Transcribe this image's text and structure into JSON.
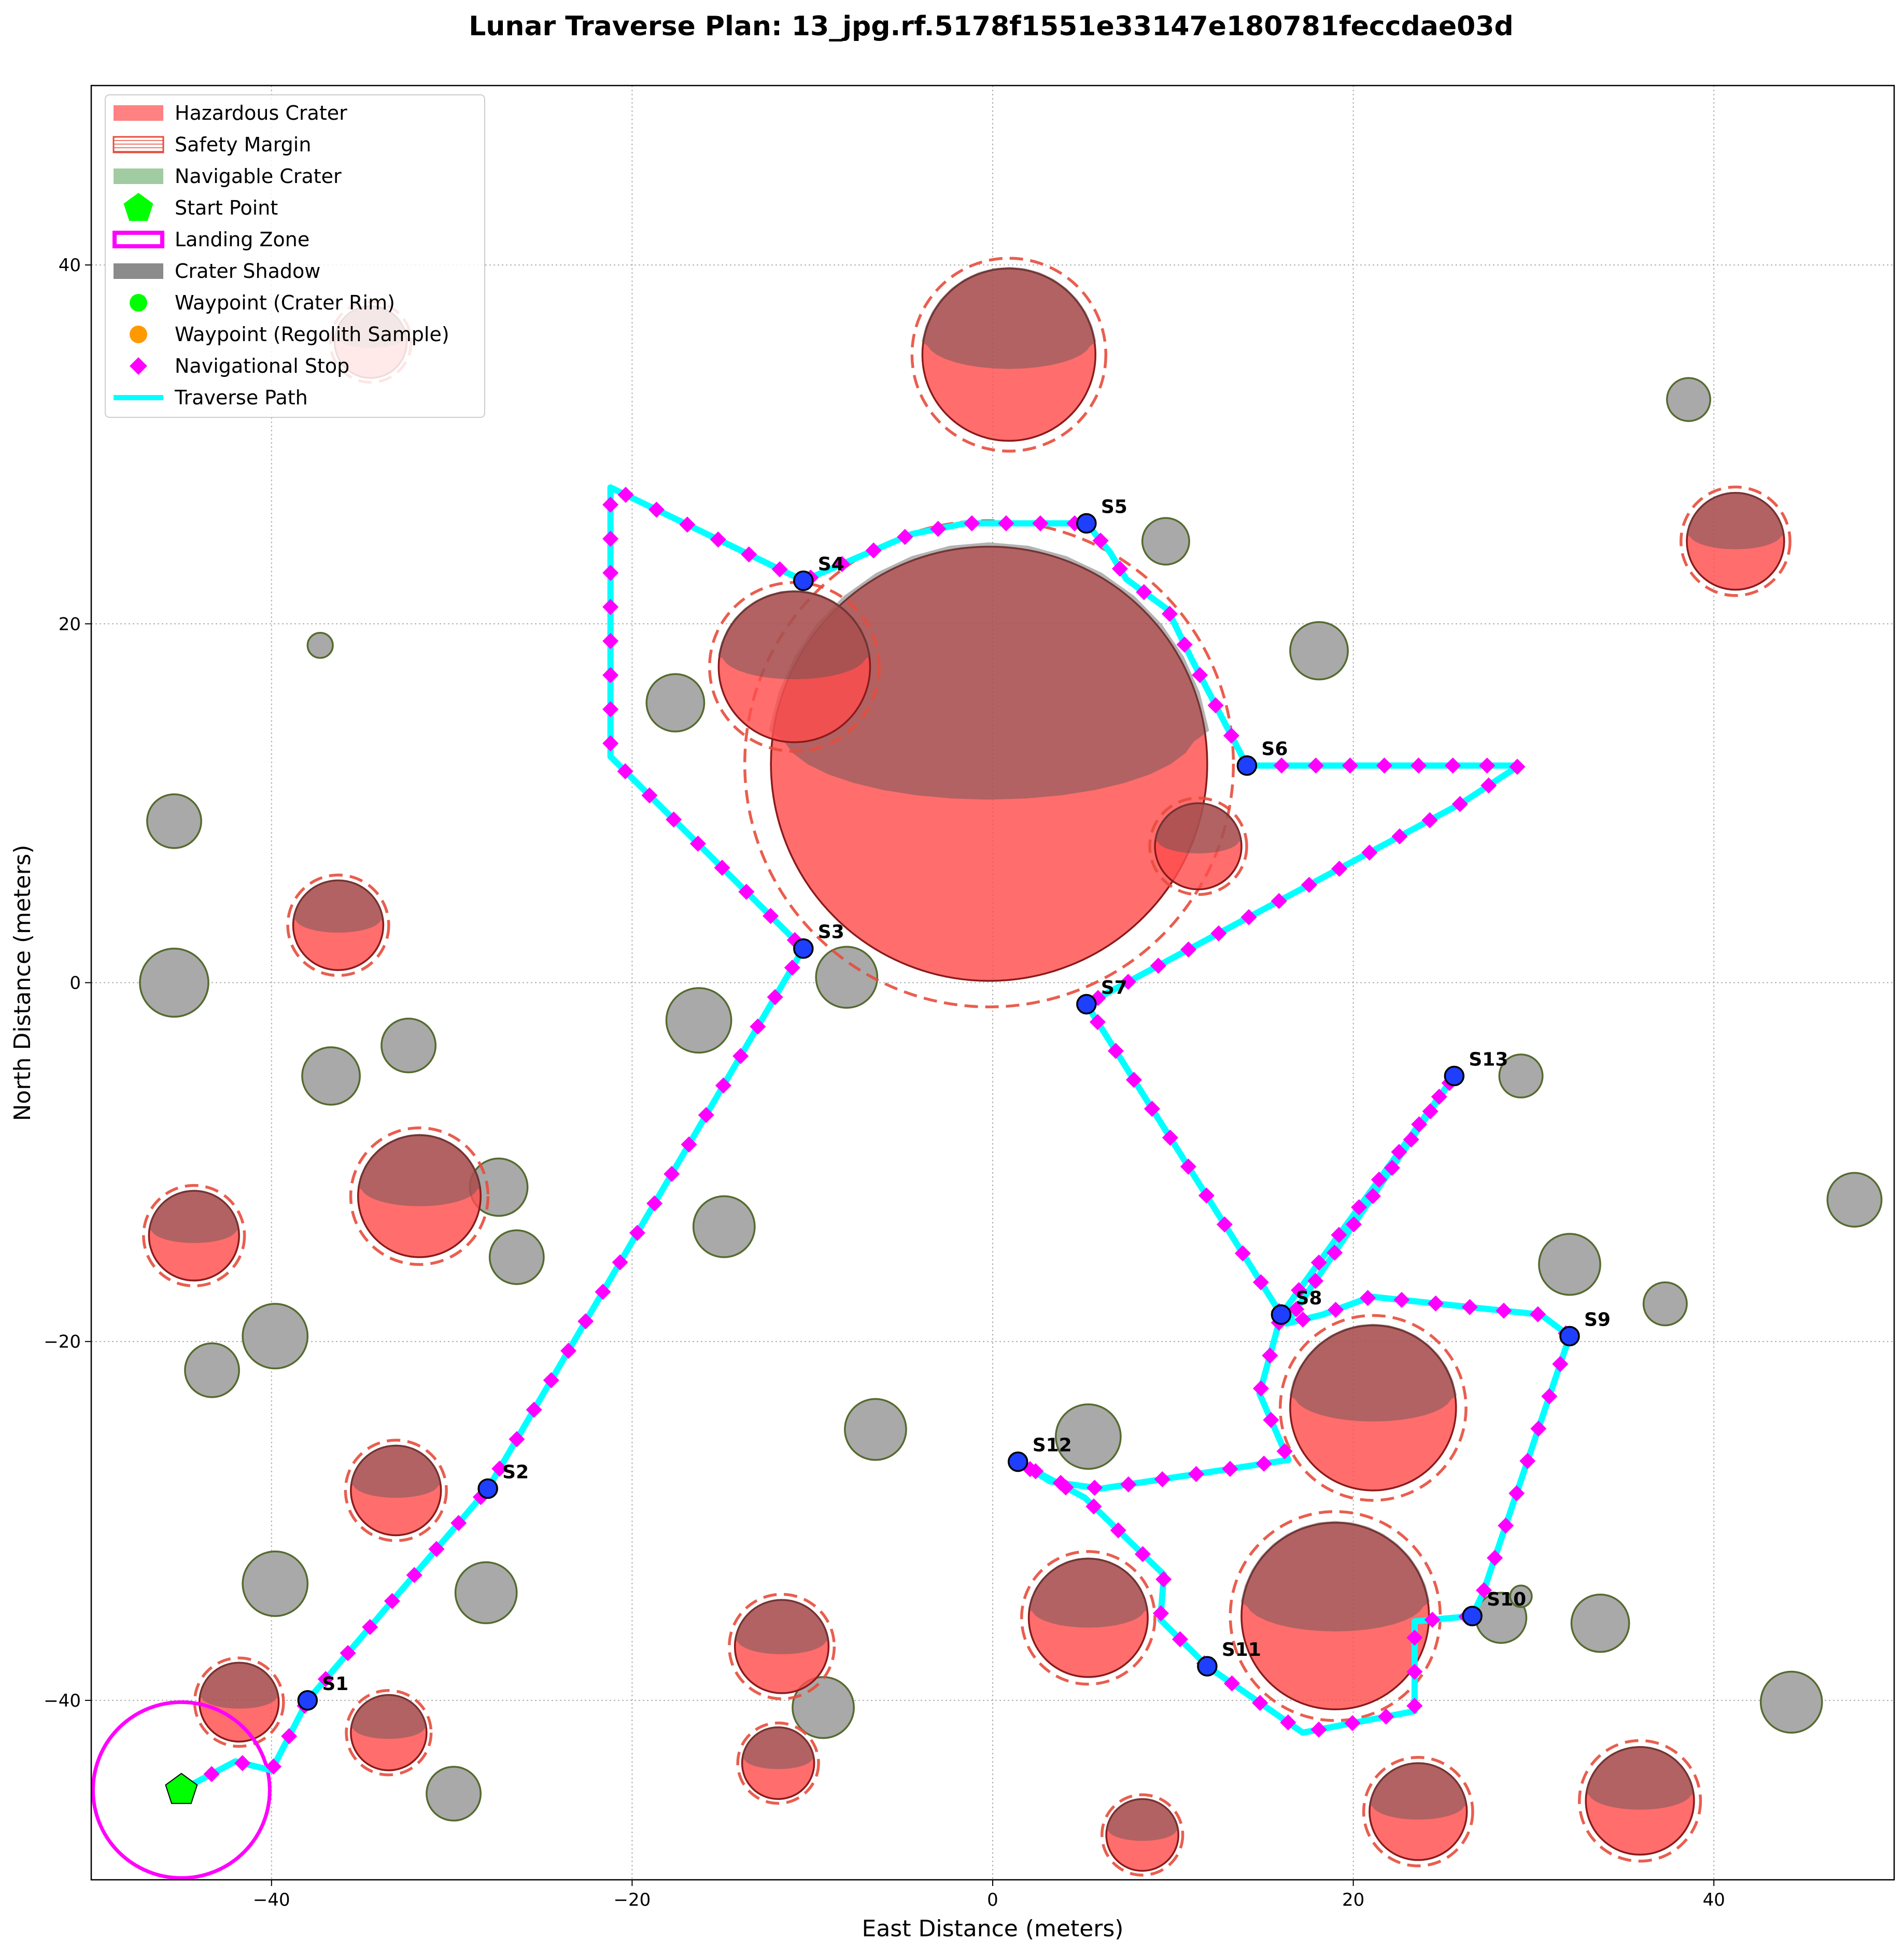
{
  "chart_data": {
    "type": "scatter",
    "title": "Lunar Traverse Plan: 13_jpg.rf.5178f1551e33147e180781feccdae03d",
    "xlabel": "East Distance (meters)",
    "ylabel": "North Distance (meters)",
    "xlim": [
      -50,
      50
    ],
    "ylim": [
      -50,
      50
    ],
    "x_ticks": [
      -40,
      -20,
      0,
      20,
      40
    ],
    "y_ticks": [
      -40,
      -20,
      0,
      20,
      40
    ],
    "grid": true,
    "legend_position": "upper-left",
    "legend": [
      {
        "label": "Hazardous Crater",
        "kind": "patch-fill",
        "color": "#ff6b6b"
      },
      {
        "label": "Safety Margin",
        "kind": "patch-hatch",
        "color": "#e74c3c"
      },
      {
        "label": "Navigable Crater",
        "kind": "patch-fill",
        "color": "#90c290"
      },
      {
        "label": "Start Point",
        "kind": "pentagon",
        "color": "#00ff00"
      },
      {
        "label": "Landing Zone",
        "kind": "patch-outline",
        "color": "#ff00ff"
      },
      {
        "label": "Crater Shadow",
        "kind": "patch-fill",
        "color": "#777777"
      },
      {
        "label": "Waypoint (Crater Rim)",
        "kind": "dot",
        "color": "#00ff00"
      },
      {
        "label": "Waypoint (Regolith Sample)",
        "kind": "dot",
        "color": "#ff9900"
      },
      {
        "label": "Navigational Stop",
        "kind": "diamond",
        "color": "#ff00ff"
      },
      {
        "label": "Traverse Path",
        "kind": "line",
        "color": "#00ffff"
      }
    ],
    "hazardous_craters": [
      {
        "x": -0.2,
        "y": 12.2,
        "r": 12.1
      },
      {
        "x": 0.9,
        "y": 35.0,
        "r": 4.8
      },
      {
        "x": -11.0,
        "y": 17.6,
        "r": 4.2
      },
      {
        "x": 11.4,
        "y": 7.6,
        "r": 2.4
      },
      {
        "x": -36.3,
        "y": 3.2,
        "r": 2.5
      },
      {
        "x": -31.8,
        "y": -11.9,
        "r": 3.4
      },
      {
        "x": -44.3,
        "y": -14.1,
        "r": 2.5
      },
      {
        "x": -33.1,
        "y": -28.3,
        "r": 2.5
      },
      {
        "x": -41.8,
        "y": -40.1,
        "r": 2.2
      },
      {
        "x": -33.5,
        "y": -41.8,
        "r": 2.1
      },
      {
        "x": -11.7,
        "y": -37.0,
        "r": 2.6
      },
      {
        "x": -11.9,
        "y": -43.5,
        "r": 2.0
      },
      {
        "x": 5.3,
        "y": -35.4,
        "r": 3.3
      },
      {
        "x": 8.3,
        "y": -47.5,
        "r": 2.0
      },
      {
        "x": 21.1,
        "y": -23.7,
        "r": 4.6
      },
      {
        "x": 19.0,
        "y": -35.3,
        "r": 5.2
      },
      {
        "x": 23.6,
        "y": -46.2,
        "r": 2.7
      },
      {
        "x": 35.9,
        "y": -45.6,
        "r": 3.0
      },
      {
        "x": 41.2,
        "y": 24.6,
        "r": 2.7
      },
      {
        "x": -34.5,
        "y": 35.7,
        "r": 2.0
      }
    ],
    "navigable_craters": [
      {
        "x": -45.4,
        "y": 9.0,
        "r": 1.5
      },
      {
        "x": -45.4,
        "y": 0.0,
        "r": 1.9
      },
      {
        "x": -36.7,
        "y": -5.2,
        "r": 1.6
      },
      {
        "x": -32.4,
        "y": -3.5,
        "r": 1.5
      },
      {
        "x": -27.4,
        "y": -11.4,
        "r": 1.6
      },
      {
        "x": -26.4,
        "y": -15.3,
        "r": 1.5
      },
      {
        "x": -39.8,
        "y": -19.7,
        "r": 1.8
      },
      {
        "x": -43.3,
        "y": -21.6,
        "r": 1.5
      },
      {
        "x": -39.8,
        "y": -33.5,
        "r": 1.8
      },
      {
        "x": -28.1,
        "y": -34.0,
        "r": 1.7
      },
      {
        "x": -29.9,
        "y": -45.2,
        "r": 1.5
      },
      {
        "x": -37.3,
        "y": 18.8,
        "r": 0.7
      },
      {
        "x": -17.6,
        "y": 15.6,
        "r": 1.6
      },
      {
        "x": -16.3,
        "y": -2.1,
        "r": 1.8
      },
      {
        "x": -14.9,
        "y": -13.6,
        "r": 1.7
      },
      {
        "x": -8.1,
        "y": 0.3,
        "r": 1.7
      },
      {
        "x": -6.5,
        "y": -24.9,
        "r": 1.7
      },
      {
        "x": -9.4,
        "y": -40.4,
        "r": 1.7
      },
      {
        "x": 5.3,
        "y": -25.3,
        "r": 1.8
      },
      {
        "x": 9.6,
        "y": 24.6,
        "r": 1.3
      },
      {
        "x": 18.1,
        "y": 18.5,
        "r": 1.6
      },
      {
        "x": 29.3,
        "y": -5.2,
        "r": 1.2
      },
      {
        "x": 32.0,
        "y": -15.7,
        "r": 1.7
      },
      {
        "x": 37.3,
        "y": -17.9,
        "r": 1.2
      },
      {
        "x": 38.6,
        "y": 32.5,
        "r": 1.2
      },
      {
        "x": 47.8,
        "y": -12.1,
        "r": 1.5
      },
      {
        "x": 28.2,
        "y": -35.4,
        "r": 1.4
      },
      {
        "x": 29.3,
        "y": -34.2,
        "r": 0.6
      },
      {
        "x": 33.7,
        "y": -35.7,
        "r": 1.6
      },
      {
        "x": 44.3,
        "y": -40.1,
        "r": 1.7
      }
    ],
    "landing_zone": {
      "x": -45.0,
      "y": -45.0,
      "r": 4.9
    },
    "start_point": {
      "x": -45.0,
      "y": -45.0
    },
    "traverse_path": [
      [
        -45.0,
        -45.0
      ],
      [
        -42.0,
        -43.4
      ],
      [
        -40.0,
        -43.9
      ],
      [
        -38.0,
        -40.0
      ],
      [
        -28.0,
        -28.2
      ],
      [
        -10.5,
        1.9
      ],
      [
        -21.2,
        12.6
      ],
      [
        -21.2,
        27.6
      ],
      [
        -10.5,
        22.4
      ],
      [
        -4.5,
        25.0
      ],
      [
        -1.5,
        25.6
      ],
      [
        5.2,
        25.6
      ],
      [
        6.5,
        24.0
      ],
      [
        7.4,
        22.5
      ],
      [
        9.7,
        20.8
      ],
      [
        11.0,
        18.1
      ],
      [
        14.1,
        12.1
      ],
      [
        29.2,
        12.1
      ],
      [
        26.0,
        10.0
      ],
      [
        5.2,
        -1.2
      ],
      [
        16.0,
        -18.5
      ],
      [
        25.6,
        -5.2
      ],
      [
        16.3,
        -19.0
      ],
      [
        18.3,
        -18.5
      ],
      [
        21.0,
        -17.5
      ],
      [
        30.4,
        -18.5
      ],
      [
        32.0,
        -19.7
      ],
      [
        27.2,
        -34.0
      ],
      [
        26.6,
        -35.3
      ],
      [
        23.4,
        -35.6
      ],
      [
        23.4,
        -40.6
      ],
      [
        17.2,
        -41.8
      ],
      [
        11.9,
        -38.1
      ],
      [
        9.3,
        -35.5
      ],
      [
        9.5,
        -33.0
      ],
      [
        5.1,
        -28.7
      ],
      [
        1.4,
        -26.7
      ],
      [
        3.2,
        -27.8
      ],
      [
        6.0,
        -28.2
      ],
      [
        16.4,
        -26.6
      ],
      [
        14.8,
        -22.9
      ],
      [
        16.0,
        -18.5
      ]
    ],
    "waypoints": [
      {
        "label": "S1",
        "x": -38.0,
        "y": -40.0
      },
      {
        "label": "S2",
        "x": -28.0,
        "y": -28.2
      },
      {
        "label": "S3",
        "x": -10.5,
        "y": 1.9
      },
      {
        "label": "S4",
        "x": -10.5,
        "y": 22.4
      },
      {
        "label": "S5",
        "x": 5.2,
        "y": 25.6
      },
      {
        "label": "S6",
        "x": 14.1,
        "y": 12.1
      },
      {
        "label": "S7",
        "x": 5.2,
        "y": -1.2
      },
      {
        "label": "S8",
        "x": 16.0,
        "y": -18.5
      },
      {
        "label": "S9",
        "x": 32.0,
        "y": -19.7
      },
      {
        "label": "S10",
        "x": 26.6,
        "y": -35.3
      },
      {
        "label": "S11",
        "x": 11.9,
        "y": -38.1
      },
      {
        "label": "S12",
        "x": 1.4,
        "y": -26.7
      },
      {
        "label": "S13",
        "x": 25.6,
        "y": -5.2
      }
    ],
    "nav_stop_spacing": 1.9,
    "colors": {
      "hazard_fill": "#ff4d4d",
      "hazard_edge": "#8b1a1a",
      "safety_margin": "#e74c3c",
      "navigable_fill": "#a9a9a9",
      "navigable_edge": "#556b2f",
      "shadow": "#555555",
      "path": "#00ffff",
      "nav_stop": "#ff00ff",
      "waypoint_fill": "#1f3fff",
      "landing_zone": "#ff00ff",
      "start_point": "#00ff00",
      "grid": "#b0b0b0"
    }
  }
}
